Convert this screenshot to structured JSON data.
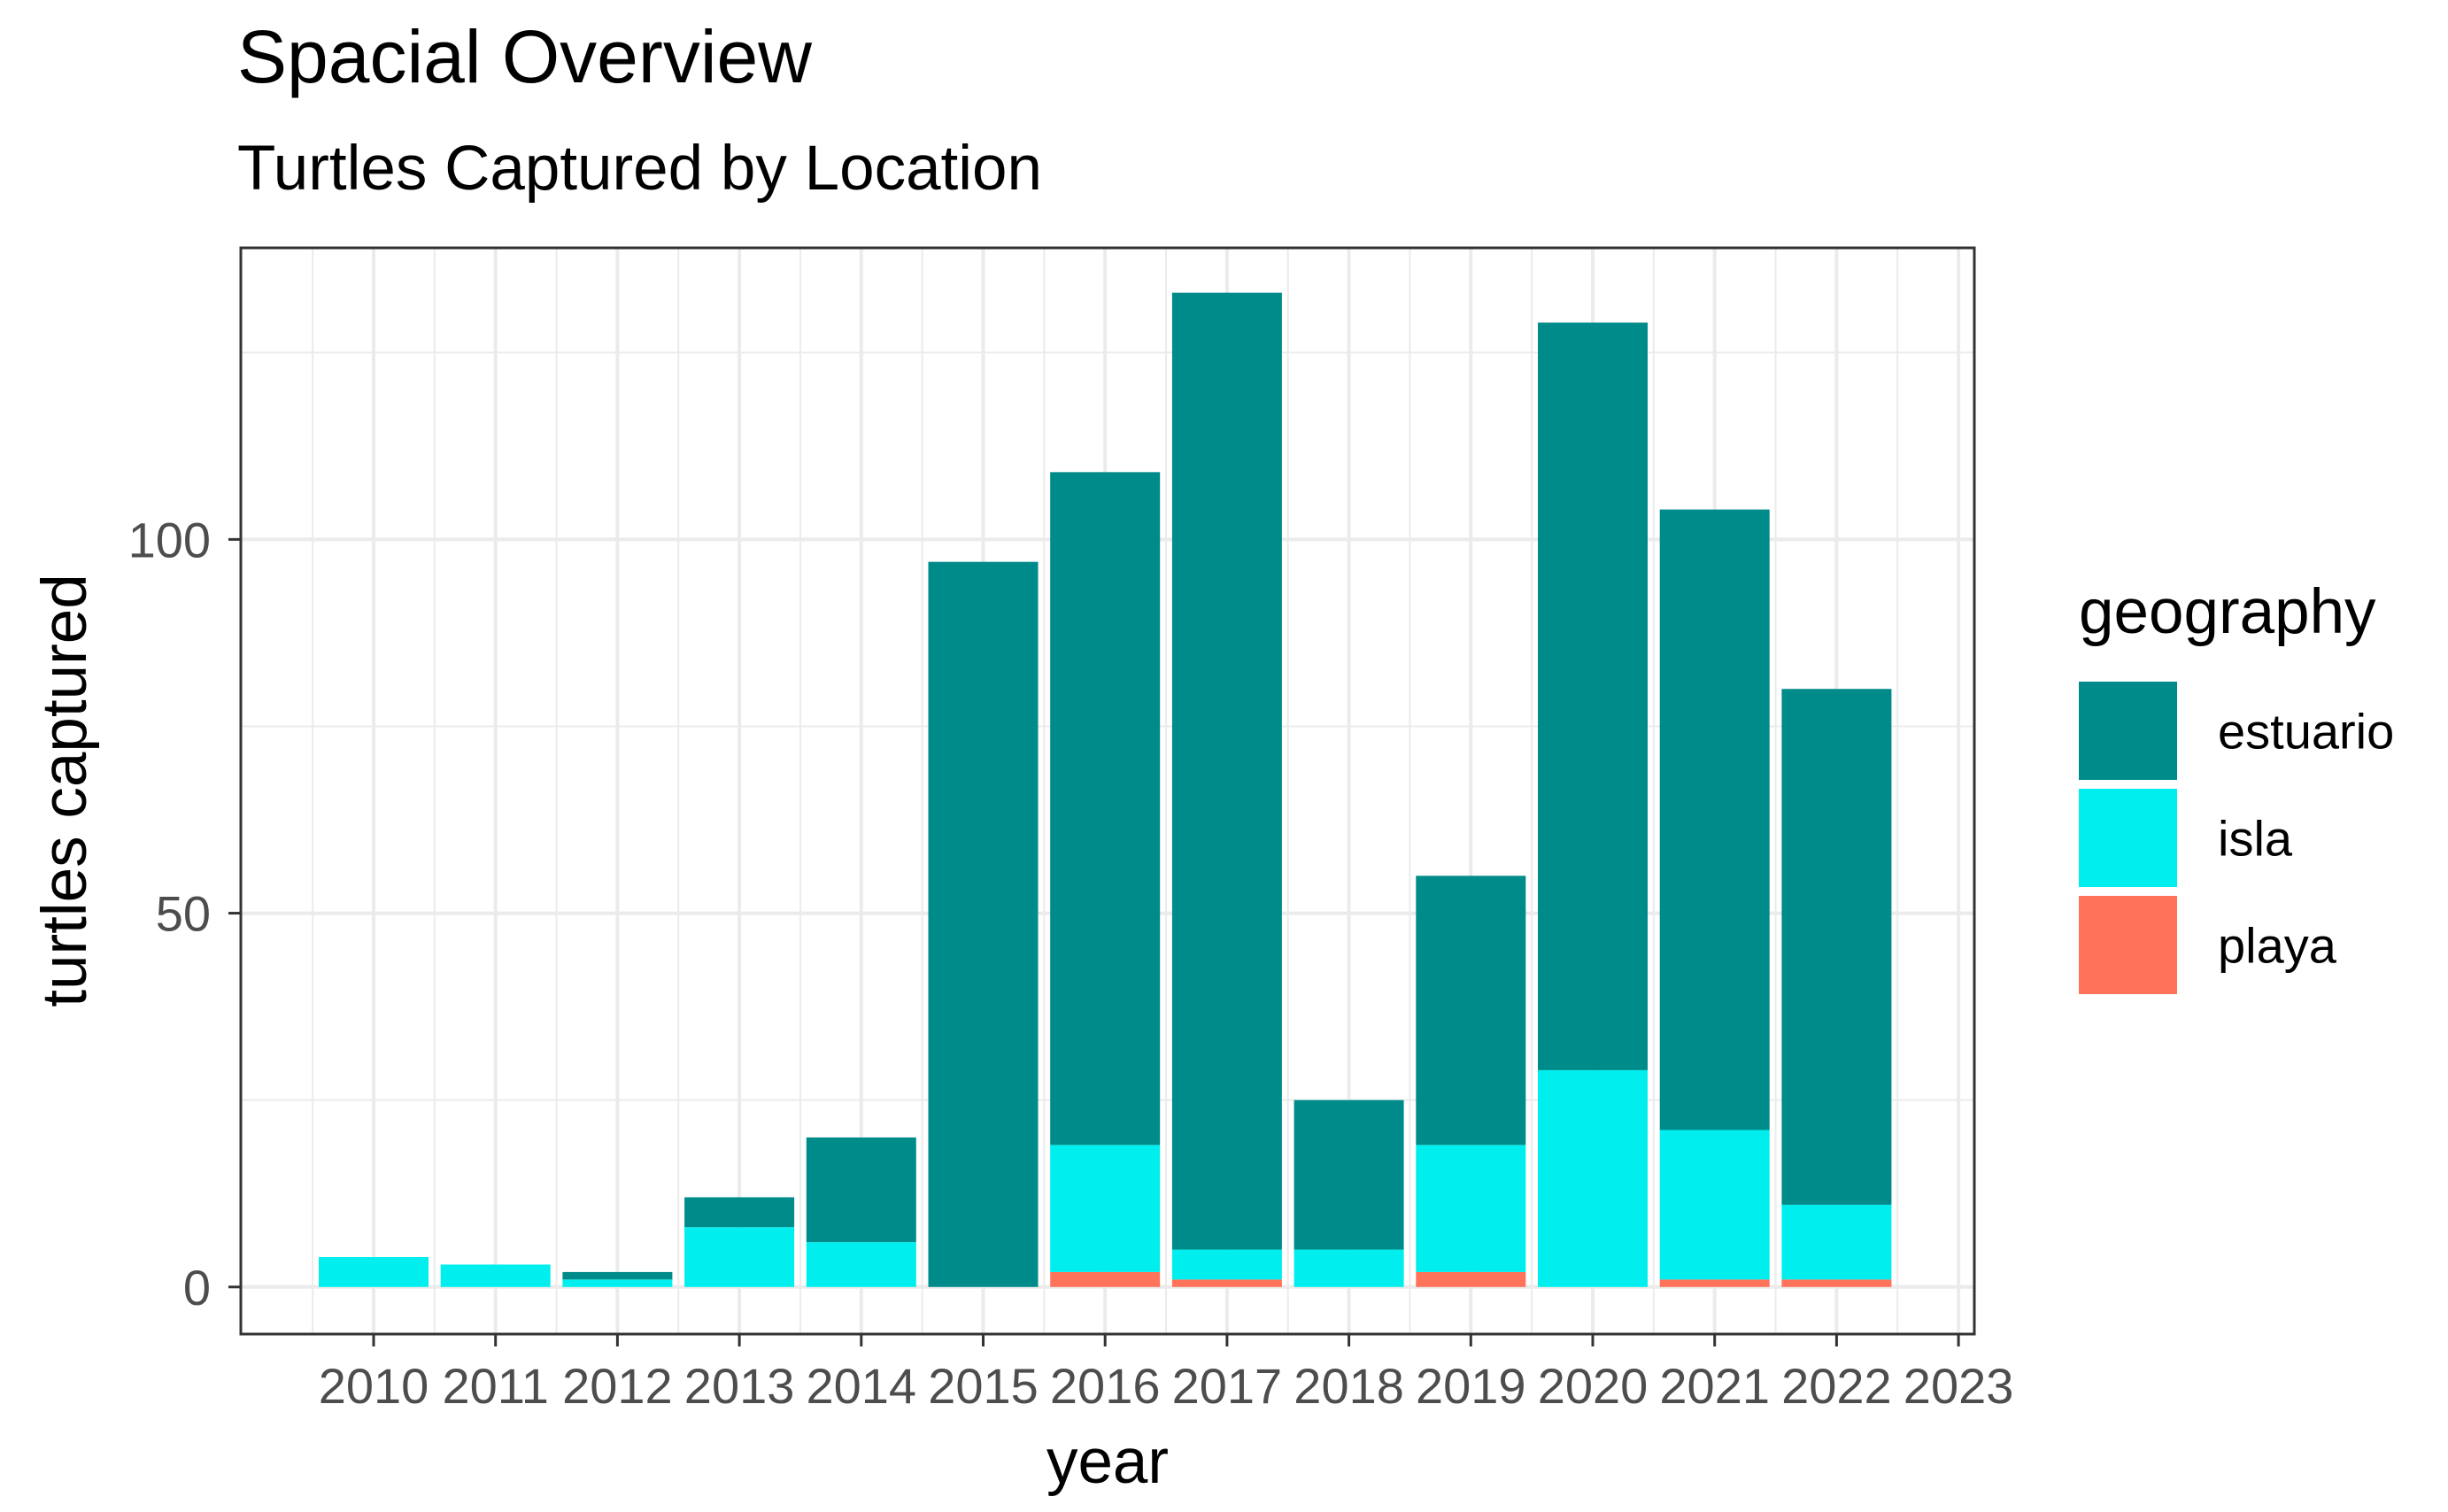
{
  "chart_data": {
    "type": "bar",
    "stacked": true,
    "title": "Spacial Overview",
    "subtitle": "Turtles Captured by Location",
    "xlabel": "year",
    "ylabel": "turtles captured",
    "categories": [
      "2010",
      "2011",
      "2012",
      "2013",
      "2014",
      "2015",
      "2016",
      "2017",
      "2018",
      "2019",
      "2020",
      "2021",
      "2022"
    ],
    "x_ticks": [
      "2010",
      "2011",
      "2012",
      "2013",
      "2014",
      "2015",
      "2016",
      "2017",
      "2018",
      "2019",
      "2020",
      "2021",
      "2022",
      "2023"
    ],
    "y_ticks": [
      0,
      50,
      100
    ],
    "ylim": [
      -6.3,
      139
    ],
    "grid": true,
    "legend": {
      "title": "geography",
      "position": "right"
    },
    "series": [
      {
        "name": "playa",
        "color": "#FF735A",
        "values": [
          0,
          0,
          0,
          0,
          0,
          0,
          2,
          1,
          0,
          2,
          0,
          1,
          1
        ]
      },
      {
        "name": "isla",
        "color": "#00EEEE",
        "values": [
          4,
          3,
          1,
          8,
          6,
          0,
          17,
          4,
          5,
          17,
          29,
          20,
          10
        ]
      },
      {
        "name": "estuario",
        "color": "#008B8B",
        "values": [
          0,
          0,
          1,
          4,
          14,
          97,
          90,
          128,
          20,
          36,
          100,
          83,
          69
        ]
      }
    ],
    "legend_order": [
      "estuario",
      "isla",
      "playa"
    ]
  }
}
